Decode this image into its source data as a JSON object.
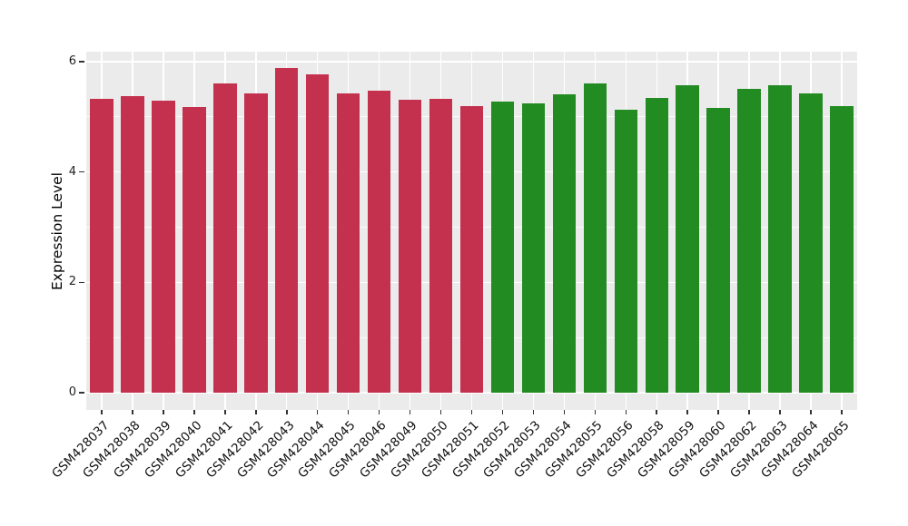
{
  "figure": {
    "background": "#FFFFFF",
    "panel_background": "#EBEBEB",
    "gridline_color": "#FFFFFF",
    "tick_mark_color": "#333333"
  },
  "chart_data": {
    "type": "bar",
    "title": "",
    "xlabel": "",
    "ylabel": "Expression Level",
    "ylim": [
      -0.31,
      6.18
    ],
    "yticks": [
      0,
      2,
      4,
      6
    ],
    "yticks_minor": [
      1,
      3,
      5
    ],
    "grid": "on",
    "legend": "none",
    "group_colors": {
      "red": "#C3314F",
      "green": "#228B22"
    },
    "bars": [
      {
        "label": "GSM428037",
        "value": 5.32,
        "group": "red"
      },
      {
        "label": "GSM428038",
        "value": 5.37,
        "group": "red"
      },
      {
        "label": "GSM428039",
        "value": 5.3,
        "group": "red"
      },
      {
        "label": "GSM428040",
        "value": 5.18,
        "group": "red"
      },
      {
        "label": "GSM428041",
        "value": 5.6,
        "group": "red"
      },
      {
        "label": "GSM428042",
        "value": 5.43,
        "group": "red"
      },
      {
        "label": "GSM428043",
        "value": 5.89,
        "group": "red"
      },
      {
        "label": "GSM428044",
        "value": 5.77,
        "group": "red"
      },
      {
        "label": "GSM428045",
        "value": 5.43,
        "group": "red"
      },
      {
        "label": "GSM428046",
        "value": 5.48,
        "group": "red"
      },
      {
        "label": "GSM428049",
        "value": 5.31,
        "group": "red"
      },
      {
        "label": "GSM428050",
        "value": 5.33,
        "group": "red"
      },
      {
        "label": "GSM428051",
        "value": 5.19,
        "group": "red"
      },
      {
        "label": "GSM428052",
        "value": 5.28,
        "group": "green"
      },
      {
        "label": "GSM428053",
        "value": 5.25,
        "group": "green"
      },
      {
        "label": "GSM428054",
        "value": 5.4,
        "group": "green"
      },
      {
        "label": "GSM428055",
        "value": 5.61,
        "group": "green"
      },
      {
        "label": "GSM428056",
        "value": 5.13,
        "group": "green"
      },
      {
        "label": "GSM428058",
        "value": 5.35,
        "group": "green"
      },
      {
        "label": "GSM428059",
        "value": 5.57,
        "group": "green"
      },
      {
        "label": "GSM428060",
        "value": 5.16,
        "group": "green"
      },
      {
        "label": "GSM428062",
        "value": 5.5,
        "group": "green"
      },
      {
        "label": "GSM428063",
        "value": 5.57,
        "group": "green"
      },
      {
        "label": "GSM428064",
        "value": 5.43,
        "group": "green"
      },
      {
        "label": "GSM428065",
        "value": 5.2,
        "group": "green"
      }
    ]
  }
}
